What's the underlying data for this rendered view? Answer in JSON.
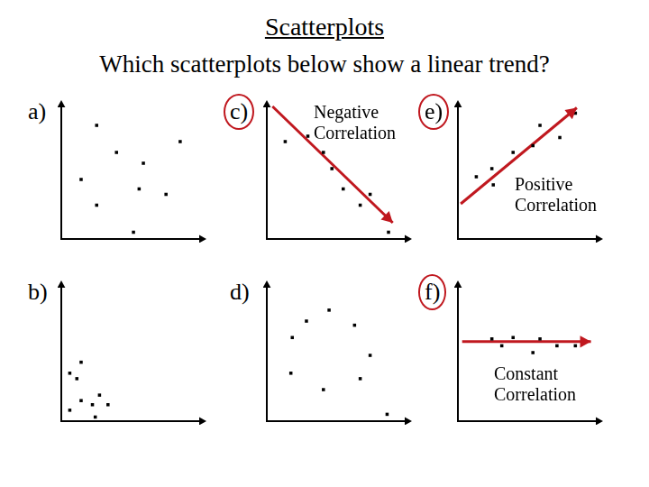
{
  "title": "Scatterplots",
  "subtitle": "Which scatterplots below show a linear trend?",
  "chart_data": [
    {
      "type": "scatter",
      "title": "a)",
      "xlim": [
        0,
        10
      ],
      "ylim": [
        0,
        10
      ],
      "xticks": [],
      "yticks": [],
      "tick_labels": false,
      "grid": false,
      "series": [
        {
          "type": "scatter",
          "color": "#000000",
          "marker": "square",
          "x": [
            2.5,
            3.9,
            5.8,
            8.4,
            1.4,
            2.5,
            5.5,
            7.4,
            5.1
          ],
          "values": [
            8.4,
            6.4,
            5.6,
            7.2,
            4.4,
            2.5,
            3.7,
            3.3,
            0.5
          ]
        }
      ]
    },
    {
      "type": "scatter",
      "title": "b)",
      "xlim": [
        0,
        10
      ],
      "ylim": [
        0,
        10
      ],
      "xticks": [],
      "yticks": [],
      "tick_labels": false,
      "grid": false,
      "series": [
        {
          "type": "scatter",
          "color": "#000000",
          "marker": "square",
          "x": [
            0.6,
            1.1,
            1.4,
            1.4,
            2.2,
            2.7,
            3.3,
            0.6,
            2.4
          ],
          "values": [
            3.5,
            3.1,
            4.3,
            1.5,
            1.2,
            1.9,
            1.2,
            0.8,
            0.3
          ]
        }
      ]
    },
    {
      "type": "scatter",
      "title": "c)",
      "annotation": "Negative Correlation",
      "xlim": [
        0,
        10
      ],
      "ylim": [
        0,
        10
      ],
      "xticks": [],
      "yticks": [],
      "tick_labels": false,
      "grid": false,
      "series": [
        {
          "type": "scatter",
          "color": "#000000",
          "marker": "square",
          "x": [
            1.3,
            2.9,
            4.0,
            4.6,
            5.4,
            7.3,
            6.6,
            8.6
          ],
          "values": [
            7.2,
            7.6,
            6.4,
            5.2,
            3.7,
            3.3,
            2.5,
            0.5
          ]
        },
        {
          "type": "line",
          "color": "#c0181f",
          "line_style": "arrow",
          "x": [
            0.4,
            8.9
          ],
          "values": [
            9.8,
            1.2
          ]
        }
      ]
    },
    {
      "type": "scatter",
      "title": "d)",
      "xlim": [
        0,
        10
      ],
      "ylim": [
        0,
        10
      ],
      "xticks": [],
      "yticks": [],
      "tick_labels": false,
      "grid": false,
      "series": [
        {
          "type": "scatter",
          "color": "#000000",
          "marker": "square",
          "x": [
            2.8,
            4.4,
            6.2,
            1.8,
            7.3,
            1.7,
            4.0,
            6.6,
            8.5
          ],
          "values": [
            7.3,
            8.1,
            7.0,
            6.1,
            4.8,
            3.5,
            2.3,
            3.1,
            0.5
          ]
        }
      ]
    },
    {
      "type": "scatter",
      "title": "e)",
      "annotation": "Positive Correlation",
      "xlim": [
        0,
        10
      ],
      "ylim": [
        0,
        10
      ],
      "xticks": [],
      "yticks": [],
      "tick_labels": false,
      "grid": false,
      "series": [
        {
          "type": "scatter",
          "color": "#000000",
          "marker": "square",
          "x": [
            1.3,
            2.4,
            2.5,
            3.9,
            5.3,
            5.8,
            7.2,
            8.3
          ],
          "values": [
            4.6,
            5.2,
            4.0,
            6.4,
            6.9,
            8.4,
            7.5,
            9.3
          ]
        },
        {
          "type": "line",
          "color": "#c0181f",
          "line_style": "arrow",
          "x": [
            0.2,
            8.4
          ],
          "values": [
            2.6,
            9.7
          ]
        }
      ]
    },
    {
      "type": "scatter",
      "title": "f)",
      "annotation": "Constant Correlation",
      "xlim": [
        0,
        10
      ],
      "ylim": [
        0,
        10
      ],
      "xticks": [],
      "yticks": [],
      "tick_labels": false,
      "grid": false,
      "series": [
        {
          "type": "scatter",
          "color": "#000000",
          "marker": "square",
          "x": [
            2.4,
            3.9,
            5.8,
            7.0,
            8.3,
            3.1,
            5.3
          ],
          "values": [
            6.0,
            6.1,
            6.0,
            5.5,
            5.5,
            5.5,
            5.0
          ]
        },
        {
          "type": "line",
          "color": "#c0181f",
          "line_style": "arrow",
          "x": [
            0.3,
            9.4
          ],
          "values": [
            5.8,
            5.8
          ]
        }
      ]
    }
  ]
}
